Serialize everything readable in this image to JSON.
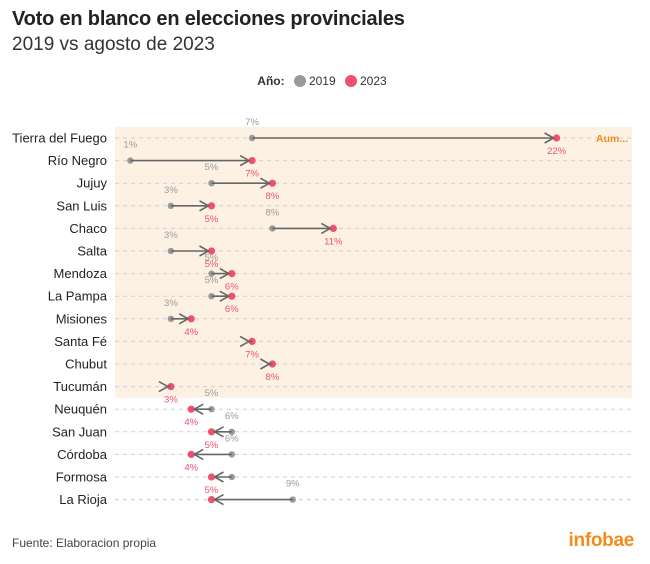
{
  "header": {
    "title": "Voto en blanco en elecciones provinciales",
    "subtitle": "2019 vs agosto de 2023"
  },
  "legend": {
    "title": "Año:",
    "items": [
      {
        "label": "2019",
        "color": "#9a9a9a"
      },
      {
        "label": "2023",
        "color": "#f0506e"
      }
    ]
  },
  "footer": {
    "source": "Fuente: Elaboracion propia",
    "brand": "infobae"
  },
  "chart_data": {
    "type": "dumbbell",
    "annotation": "Aum...",
    "colors": {
      "y2019": "#9a9a9a",
      "y2023": "#f0506e",
      "arrow": "#666666",
      "highlight": "#fdf1e4",
      "annotation": "#f28c1b"
    },
    "xlim": [
      0,
      23
    ],
    "provinces": [
      {
        "name": "Tierra del Fuego",
        "v2019": 7,
        "v2023": 22,
        "label2019": "7%",
        "label2023": "22%",
        "increase": true
      },
      {
        "name": "Río Negro",
        "v2019": 1,
        "v2023": 7,
        "label2019": "1%",
        "label2023": "7%",
        "increase": true
      },
      {
        "name": "Jujuy",
        "v2019": 5,
        "v2023": 8,
        "label2019": "5%",
        "label2023": "8%",
        "increase": true
      },
      {
        "name": "San Luis",
        "v2019": 3,
        "v2023": 5,
        "label2019": "3%",
        "label2023": "5%",
        "increase": true
      },
      {
        "name": "Chaco",
        "v2019": 8,
        "v2023": 11,
        "label2019": "8%",
        "label2023": "11%",
        "increase": true
      },
      {
        "name": "Salta",
        "v2019": 3,
        "v2023": 5,
        "label2019": "3%",
        "label2023": "5%",
        "increase": true
      },
      {
        "name": "Mendoza",
        "v2019": 5,
        "v2023": 6,
        "label2019": "5%",
        "label2023": "6%",
        "increase": true
      },
      {
        "name": "La Pampa",
        "v2019": 5,
        "v2023": 6,
        "label2019": "5%",
        "label2023": "6%",
        "increase": true
      },
      {
        "name": "Misiones",
        "v2019": 3,
        "v2023": 4,
        "label2019": "3%",
        "label2023": "4%",
        "increase": true
      },
      {
        "name": "Santa Fé",
        "v2019": 7,
        "v2023": 7,
        "label2019": "",
        "label2023": "7%",
        "increase": true
      },
      {
        "name": "Chubut",
        "v2019": 8,
        "v2023": 8,
        "label2019": "",
        "label2023": "8%",
        "increase": true
      },
      {
        "name": "Tucumán",
        "v2019": 3,
        "v2023": 3,
        "label2019": "",
        "label2023": "3%",
        "increase": true
      },
      {
        "name": "Neuquén",
        "v2019": 5,
        "v2023": 4,
        "label2019": "5%",
        "label2023": "4%",
        "increase": false
      },
      {
        "name": "San Juan",
        "v2019": 6,
        "v2023": 5,
        "label2019": "6%",
        "label2023": "5%",
        "increase": false
      },
      {
        "name": "Córdoba",
        "v2019": 6,
        "v2023": 4,
        "label2019": "6%",
        "label2023": "4%",
        "increase": false
      },
      {
        "name": "Formosa",
        "v2019": 6,
        "v2023": 5,
        "label2019": "",
        "label2023": "5%",
        "increase": false
      },
      {
        "name": "La Rioja",
        "v2019": 9,
        "v2023": 5,
        "label2019": "9%",
        "label2023": "",
        "increase": false
      }
    ]
  }
}
